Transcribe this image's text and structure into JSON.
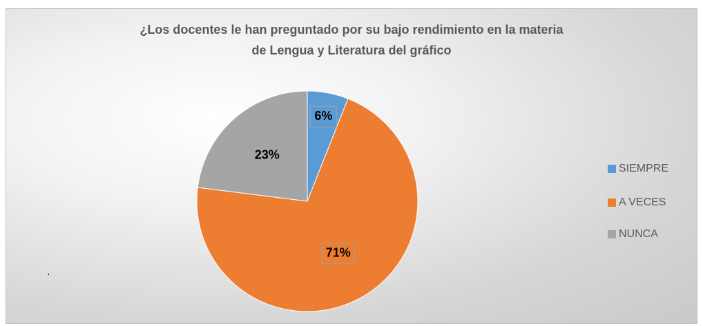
{
  "chart_data": {
    "type": "pie",
    "title": "¿Los docentes le han preguntado por su bajo rendimiento en la materia\nde Lengua y Literatura del gráfico",
    "categories": [
      "SIEMPRE",
      "A VECES",
      "NUNCA"
    ],
    "values": [
      6,
      71,
      23
    ],
    "value_labels": [
      "6%",
      "71%",
      "23%"
    ],
    "colors": [
      "#5b9bd5",
      "#ed7d31",
      "#a5a5a5"
    ],
    "legend": "right",
    "annotations": [
      ".",
      "."
    ]
  }
}
